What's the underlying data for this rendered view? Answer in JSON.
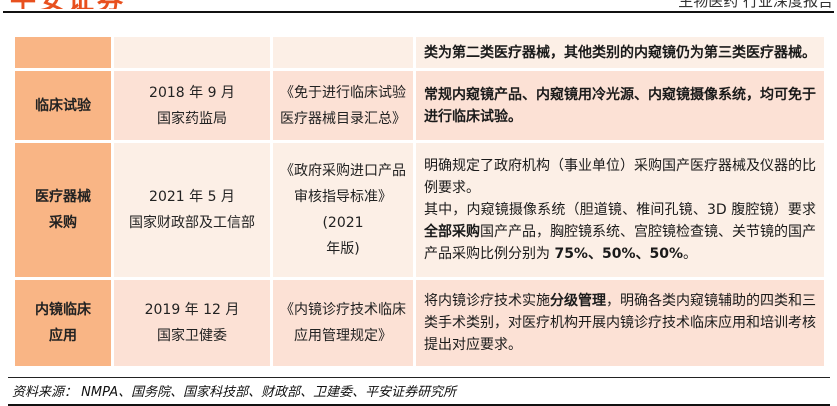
{
  "header": {
    "brand": "平安证券",
    "report_type": "生物医药 行业深度报告"
  },
  "table": {
    "colors": {
      "label_bg": "#F9B585",
      "row_pink": "#FCE1D5",
      "row_cream": "#FCEFE6",
      "brand_orange": "#E8501E"
    },
    "rows": [
      {
        "label_lines": [],
        "date_agency_lines": [],
        "policy_lines": [],
        "content": [
          [
            {
              "t": "类为第二类医疗器械，其他类别的内窥镜仍为第三类医疗器械。",
              "b": true
            }
          ]
        ]
      },
      {
        "label_lines": [
          "临床试验"
        ],
        "date_agency_lines": [
          "2018 年 9 月",
          "国家药监局"
        ],
        "policy_lines": [
          "《免于进行临床试验",
          "医疗器械目录汇总》"
        ],
        "content": [
          [
            {
              "t": "常规内窥镜产品、内窥镜用冷光源、内窥镜摄像系统，均可免于进行临床试验。",
              "b": true
            }
          ]
        ]
      },
      {
        "label_lines": [
          "医疗器械",
          "采购"
        ],
        "date_agency_lines": [
          "2021 年 5 月",
          "国家财政部及工信部"
        ],
        "policy_lines": [
          "《政府采购进口产品",
          "审核指导标准》(2021",
          "年版)"
        ],
        "content": [
          [
            {
              "t": "明确规定了政府机构（事业单位）采购国产医疗器械及仪器的比例要求。",
              "b": false
            }
          ],
          [
            {
              "t": "其中，内窥镜摄像系统（胆道镜、椎间孔镜、3D 腹腔镜）要求",
              "b": false
            },
            {
              "t": "全部采购",
              "b": true
            },
            {
              "t": "国产产品，胸腔镜系统、宫腔镜检查镜、关节镜的国产产品采购比例分别为 ",
              "b": false
            },
            {
              "t": "75%、50%、50%",
              "b": true
            },
            {
              "t": "。",
              "b": false
            }
          ]
        ]
      },
      {
        "label_lines": [
          "内镜临床",
          "应用"
        ],
        "date_agency_lines": [
          "2019 年 12 月",
          "国家卫健委"
        ],
        "policy_lines": [
          "《内镜诊疗技术临床",
          "应用管理规定》"
        ],
        "content": [
          [
            {
              "t": "将内镜诊疗技术实施",
              "b": false
            },
            {
              "t": "分级管理",
              "b": true
            },
            {
              "t": "，明确各类内窥镜辅助的四类和三类手术类别，对医疗机构开展内镜诊疗技术临床应用和培训考核提出对应要求。",
              "b": false
            }
          ]
        ]
      }
    ]
  },
  "footer": {
    "source": "资料来源：  NMPA、国务院、国家科技部、财政部、卫建委、平安证券研究所"
  }
}
